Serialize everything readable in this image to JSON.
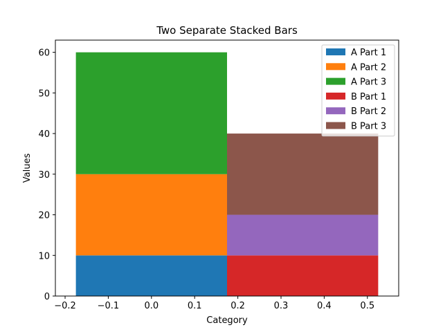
{
  "chart_data": {
    "type": "bar",
    "stacked": true,
    "title": "Two Separate Stacked Bars",
    "xlabel": "Category",
    "ylabel": "Values",
    "xlim": [
      -0.2225,
      0.5725
    ],
    "ylim": [
      0,
      63
    ],
    "xticks": [
      -0.2,
      -0.1,
      0.0,
      0.1,
      0.2,
      0.3,
      0.4,
      0.5
    ],
    "xtick_labels": [
      "−0.2",
      "−0.1",
      "0.0",
      "0.1",
      "0.2",
      "0.3",
      "0.4",
      "0.5"
    ],
    "yticks": [
      0,
      10,
      20,
      30,
      40,
      50,
      60
    ],
    "ytick_labels": [
      "0",
      "10",
      "20",
      "30",
      "40",
      "50",
      "60"
    ],
    "grid": false,
    "legend_position": "top-right",
    "bar_width": 0.35,
    "series": [
      {
        "name": "A Part 1",
        "x": 0.0,
        "bottom": 0,
        "value": 10,
        "color": "#1f77b4"
      },
      {
        "name": "A Part 2",
        "x": 0.0,
        "bottom": 10,
        "value": 20,
        "color": "#ff7f0e"
      },
      {
        "name": "A Part 3",
        "x": 0.0,
        "bottom": 30,
        "value": 30,
        "color": "#2ca02c"
      },
      {
        "name": "B Part 1",
        "x": 0.35,
        "bottom": 0,
        "value": 10,
        "color": "#d62728"
      },
      {
        "name": "B Part 2",
        "x": 0.35,
        "bottom": 10,
        "value": 10,
        "color": "#9467bd"
      },
      {
        "name": "B Part 3",
        "x": 0.35,
        "bottom": 20,
        "value": 20,
        "color": "#8c564b"
      }
    ]
  }
}
